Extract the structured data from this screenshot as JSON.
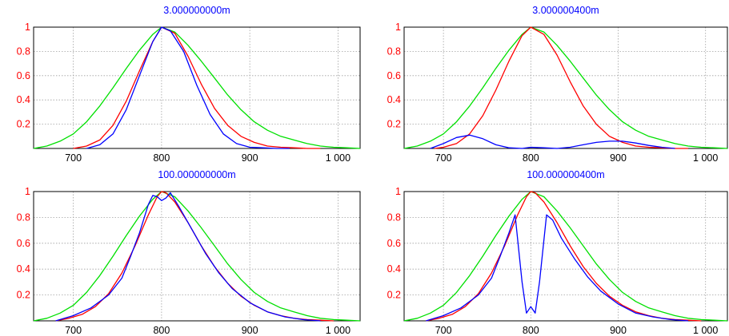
{
  "chart_data": [
    {
      "type": "line",
      "title": "3.000000000m",
      "xlim": [
        655,
        1025
      ],
      "ylim": [
        0,
        1
      ],
      "xticks": [
        700,
        800,
        900,
        1000
      ],
      "xtick_labels": [
        "700",
        "800",
        "900",
        "1 000"
      ],
      "yticks": [
        0.2,
        0.4,
        0.6,
        0.8,
        1
      ],
      "ytick_labels": [
        "0.2",
        "0.4",
        "0.6",
        "0.8",
        "1"
      ],
      "grid": true,
      "series": [
        {
          "color": "#00e000",
          "x": [
            655,
            670,
            685,
            700,
            715,
            730,
            745,
            760,
            775,
            790,
            800,
            815,
            830,
            845,
            860,
            875,
            890,
            905,
            920,
            935,
            950,
            965,
            980,
            995,
            1010,
            1025
          ],
          "y": [
            0.0,
            0.02,
            0.06,
            0.12,
            0.22,
            0.35,
            0.5,
            0.66,
            0.81,
            0.94,
            1.0,
            0.96,
            0.85,
            0.72,
            0.58,
            0.44,
            0.32,
            0.22,
            0.15,
            0.1,
            0.07,
            0.04,
            0.02,
            0.01,
            0.005,
            0.0
          ]
        },
        {
          "color": "#ff0000",
          "x": [
            700,
            715,
            730,
            745,
            760,
            775,
            790,
            800,
            815,
            830,
            845,
            860,
            875,
            890,
            905,
            920,
            935,
            950,
            965,
            980
          ],
          "y": [
            0.0,
            0.02,
            0.07,
            0.19,
            0.39,
            0.64,
            0.88,
            1.0,
            0.95,
            0.76,
            0.53,
            0.33,
            0.19,
            0.1,
            0.05,
            0.02,
            0.01,
            0.005,
            0.0,
            0.0
          ]
        },
        {
          "color": "#0000ff",
          "x": [
            715,
            730,
            745,
            760,
            775,
            790,
            800,
            810,
            825,
            840,
            855,
            870,
            885,
            900,
            915,
            930,
            945
          ],
          "y": [
            0.0,
            0.03,
            0.12,
            0.32,
            0.6,
            0.88,
            1.0,
            0.97,
            0.8,
            0.52,
            0.28,
            0.12,
            0.04,
            0.01,
            0.005,
            0.0,
            0.0
          ]
        }
      ]
    },
    {
      "type": "line",
      "title": "3.000000400m",
      "xlim": [
        655,
        1025
      ],
      "ylim": [
        0,
        1
      ],
      "xticks": [
        700,
        800,
        900,
        1000
      ],
      "xtick_labels": [
        "700",
        "800",
        "900",
        "1 000"
      ],
      "yticks": [
        0.2,
        0.4,
        0.6,
        0.8,
        1
      ],
      "ytick_labels": [
        "0.2",
        "0.4",
        "0.6",
        "0.8",
        "1"
      ],
      "grid": true,
      "series": [
        {
          "color": "#00e000",
          "x": [
            655,
            670,
            685,
            700,
            715,
            730,
            745,
            760,
            775,
            790,
            800,
            815,
            830,
            845,
            860,
            875,
            890,
            905,
            920,
            935,
            950,
            965,
            980,
            995,
            1010,
            1025
          ],
          "y": [
            0.0,
            0.02,
            0.06,
            0.12,
            0.22,
            0.35,
            0.5,
            0.66,
            0.81,
            0.94,
            1.0,
            0.96,
            0.85,
            0.72,
            0.58,
            0.44,
            0.32,
            0.22,
            0.15,
            0.1,
            0.07,
            0.04,
            0.02,
            0.01,
            0.005,
            0.0
          ]
        },
        {
          "color": "#ff0000",
          "x": [
            690,
            700,
            715,
            730,
            745,
            760,
            775,
            790,
            800,
            815,
            830,
            845,
            860,
            875,
            890,
            905,
            920,
            935,
            950,
            965,
            980
          ],
          "y": [
            0.0,
            0.01,
            0.04,
            0.12,
            0.27,
            0.48,
            0.72,
            0.93,
            1.0,
            0.94,
            0.77,
            0.55,
            0.35,
            0.2,
            0.1,
            0.05,
            0.02,
            0.01,
            0.005,
            0.0,
            0.0
          ]
        },
        {
          "color": "#0000ff",
          "x": [
            685,
            700,
            715,
            730,
            745,
            760,
            775,
            790,
            800,
            815,
            830,
            845,
            860,
            875,
            890,
            905,
            920,
            935,
            950,
            965
          ],
          "y": [
            0.0,
            0.04,
            0.09,
            0.11,
            0.08,
            0.03,
            0.005,
            0.0,
            0.01,
            0.005,
            0.0,
            0.01,
            0.03,
            0.05,
            0.06,
            0.06,
            0.045,
            0.025,
            0.01,
            0.0
          ]
        }
      ]
    },
    {
      "type": "line",
      "title": "100.000000000m",
      "xlim": [
        655,
        1025
      ],
      "ylim": [
        0,
        1
      ],
      "xticks": [
        700,
        800,
        900,
        1000
      ],
      "xtick_labels": [
        "700",
        "800",
        "900",
        "1 000"
      ],
      "yticks": [
        0.2,
        0.4,
        0.6,
        0.8,
        1
      ],
      "ytick_labels": [
        "0.2",
        "0.4",
        "0.6",
        "0.8",
        "1"
      ],
      "grid": true,
      "series": [
        {
          "color": "#00e000",
          "x": [
            655,
            670,
            685,
            700,
            715,
            730,
            745,
            760,
            775,
            790,
            800,
            815,
            830,
            845,
            860,
            875,
            890,
            905,
            920,
            935,
            950,
            965,
            980,
            995,
            1010,
            1025
          ],
          "y": [
            0.0,
            0.02,
            0.06,
            0.12,
            0.22,
            0.35,
            0.5,
            0.66,
            0.81,
            0.94,
            1.0,
            0.96,
            0.85,
            0.72,
            0.58,
            0.44,
            0.32,
            0.22,
            0.15,
            0.1,
            0.07,
            0.04,
            0.02,
            0.01,
            0.005,
            0.0
          ]
        },
        {
          "color": "#ff0000",
          "x": [
            680,
            695,
            710,
            725,
            740,
            755,
            770,
            785,
            795,
            800,
            805,
            815,
            830,
            845,
            860,
            875,
            890,
            905,
            920,
            935,
            950,
            965,
            980,
            995
          ],
          "y": [
            0.0,
            0.02,
            0.05,
            0.11,
            0.21,
            0.37,
            0.58,
            0.82,
            0.96,
            1.0,
            0.99,
            0.92,
            0.76,
            0.58,
            0.42,
            0.29,
            0.19,
            0.12,
            0.07,
            0.04,
            0.02,
            0.01,
            0.005,
            0.0
          ]
        },
        {
          "color": "#0000ff",
          "x": [
            680,
            700,
            720,
            740,
            755,
            765,
            775,
            785,
            790,
            795,
            800,
            805,
            810,
            820,
            835,
            850,
            865,
            880,
            900,
            920,
            940,
            960,
            980
          ],
          "y": [
            0.0,
            0.04,
            0.1,
            0.2,
            0.33,
            0.5,
            0.68,
            0.9,
            0.97,
            0.96,
            0.93,
            0.95,
            0.99,
            0.88,
            0.7,
            0.52,
            0.37,
            0.25,
            0.14,
            0.07,
            0.03,
            0.01,
            0.0
          ]
        }
      ]
    },
    {
      "type": "line",
      "title": "100.000000400m",
      "xlim": [
        655,
        1025
      ],
      "ylim": [
        0,
        1
      ],
      "xticks": [
        700,
        800,
        900,
        1000
      ],
      "xtick_labels": [
        "700",
        "800",
        "900",
        "1 000"
      ],
      "yticks": [
        0.2,
        0.4,
        0.6,
        0.8,
        1
      ],
      "ytick_labels": [
        "0.2",
        "0.4",
        "0.6",
        "0.8",
        "1"
      ],
      "grid": true,
      "series": [
        {
          "color": "#00e000",
          "x": [
            655,
            670,
            685,
            700,
            715,
            730,
            745,
            760,
            775,
            790,
            800,
            815,
            830,
            845,
            860,
            875,
            890,
            905,
            920,
            935,
            950,
            965,
            980,
            995,
            1010,
            1025
          ],
          "y": [
            0.0,
            0.02,
            0.06,
            0.12,
            0.22,
            0.35,
            0.5,
            0.66,
            0.81,
            0.94,
            1.0,
            0.96,
            0.85,
            0.72,
            0.58,
            0.44,
            0.32,
            0.22,
            0.15,
            0.1,
            0.07,
            0.04,
            0.02,
            0.01,
            0.005,
            0.0
          ]
        },
        {
          "color": "#ff0000",
          "x": [
            680,
            695,
            710,
            725,
            740,
            755,
            770,
            785,
            795,
            800,
            805,
            815,
            830,
            845,
            860,
            875,
            890,
            905,
            920,
            935,
            950,
            965,
            980,
            995
          ],
          "y": [
            0.0,
            0.02,
            0.05,
            0.11,
            0.21,
            0.37,
            0.58,
            0.82,
            0.96,
            1.0,
            0.99,
            0.92,
            0.76,
            0.58,
            0.42,
            0.29,
            0.19,
            0.12,
            0.07,
            0.04,
            0.02,
            0.01,
            0.005,
            0.0
          ]
        },
        {
          "color": "#0000ff",
          "x": [
            680,
            700,
            720,
            740,
            755,
            765,
            775,
            782,
            790,
            795,
            800,
            805,
            810,
            818,
            825,
            835,
            850,
            865,
            880,
            900,
            920,
            940,
            960,
            980
          ],
          "y": [
            0.0,
            0.04,
            0.1,
            0.2,
            0.33,
            0.5,
            0.68,
            0.82,
            0.3,
            0.06,
            0.11,
            0.06,
            0.3,
            0.82,
            0.78,
            0.64,
            0.48,
            0.34,
            0.23,
            0.13,
            0.06,
            0.03,
            0.01,
            0.0
          ]
        }
      ]
    }
  ]
}
